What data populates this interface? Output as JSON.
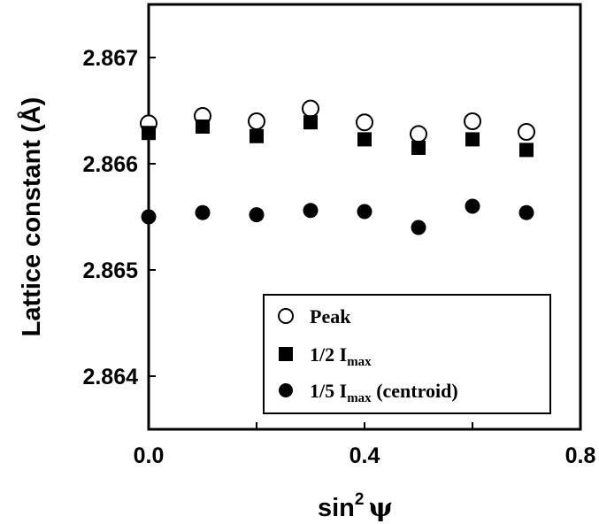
{
  "chart_data": {
    "type": "scatter",
    "xlabel": "sin",
    "xlabel_sup": "2",
    "xlabel_symbol": "ψ",
    "ylabel": "Lattice constant (Å)",
    "xlim": [
      0.0,
      0.8
    ],
    "ylim": [
      2.8635,
      2.8675
    ],
    "x_ticks": [
      0.0,
      0.2,
      0.4,
      0.6,
      0.8
    ],
    "x_tick_labels": [
      "0.0",
      "",
      "0.4",
      "",
      "0.8"
    ],
    "y_ticks": [
      2.864,
      2.865,
      2.866,
      2.867
    ],
    "y_tick_labels": [
      "2.864",
      "2.865",
      "2.866",
      "2.867"
    ],
    "grid": false,
    "legend_position": "lower-right",
    "series": [
      {
        "name": "Peak",
        "marker": "open-circle",
        "x": [
          0.0,
          0.1,
          0.2,
          0.3,
          0.4,
          0.5,
          0.6,
          0.7
        ],
        "y": [
          2.86638,
          2.86645,
          2.8664,
          2.86652,
          2.86639,
          2.86628,
          2.8664,
          2.8663
        ]
      },
      {
        "name": "1/2 I",
        "name_sub": "max",
        "marker": "filled-square",
        "x": [
          0.0,
          0.1,
          0.2,
          0.3,
          0.4,
          0.5,
          0.6,
          0.7
        ],
        "y": [
          2.86629,
          2.86635,
          2.86626,
          2.86639,
          2.86623,
          2.86615,
          2.86623,
          2.86613
        ]
      },
      {
        "name": "1/5 I",
        "name_sub": "max",
        "name_suffix": " (centroid)",
        "marker": "filled-circle",
        "x": [
          0.0,
          0.1,
          0.2,
          0.3,
          0.4,
          0.5,
          0.6,
          0.7
        ],
        "y": [
          2.8655,
          2.86554,
          2.86552,
          2.86556,
          2.86555,
          2.8654,
          2.8656,
          2.86554
        ]
      }
    ]
  }
}
